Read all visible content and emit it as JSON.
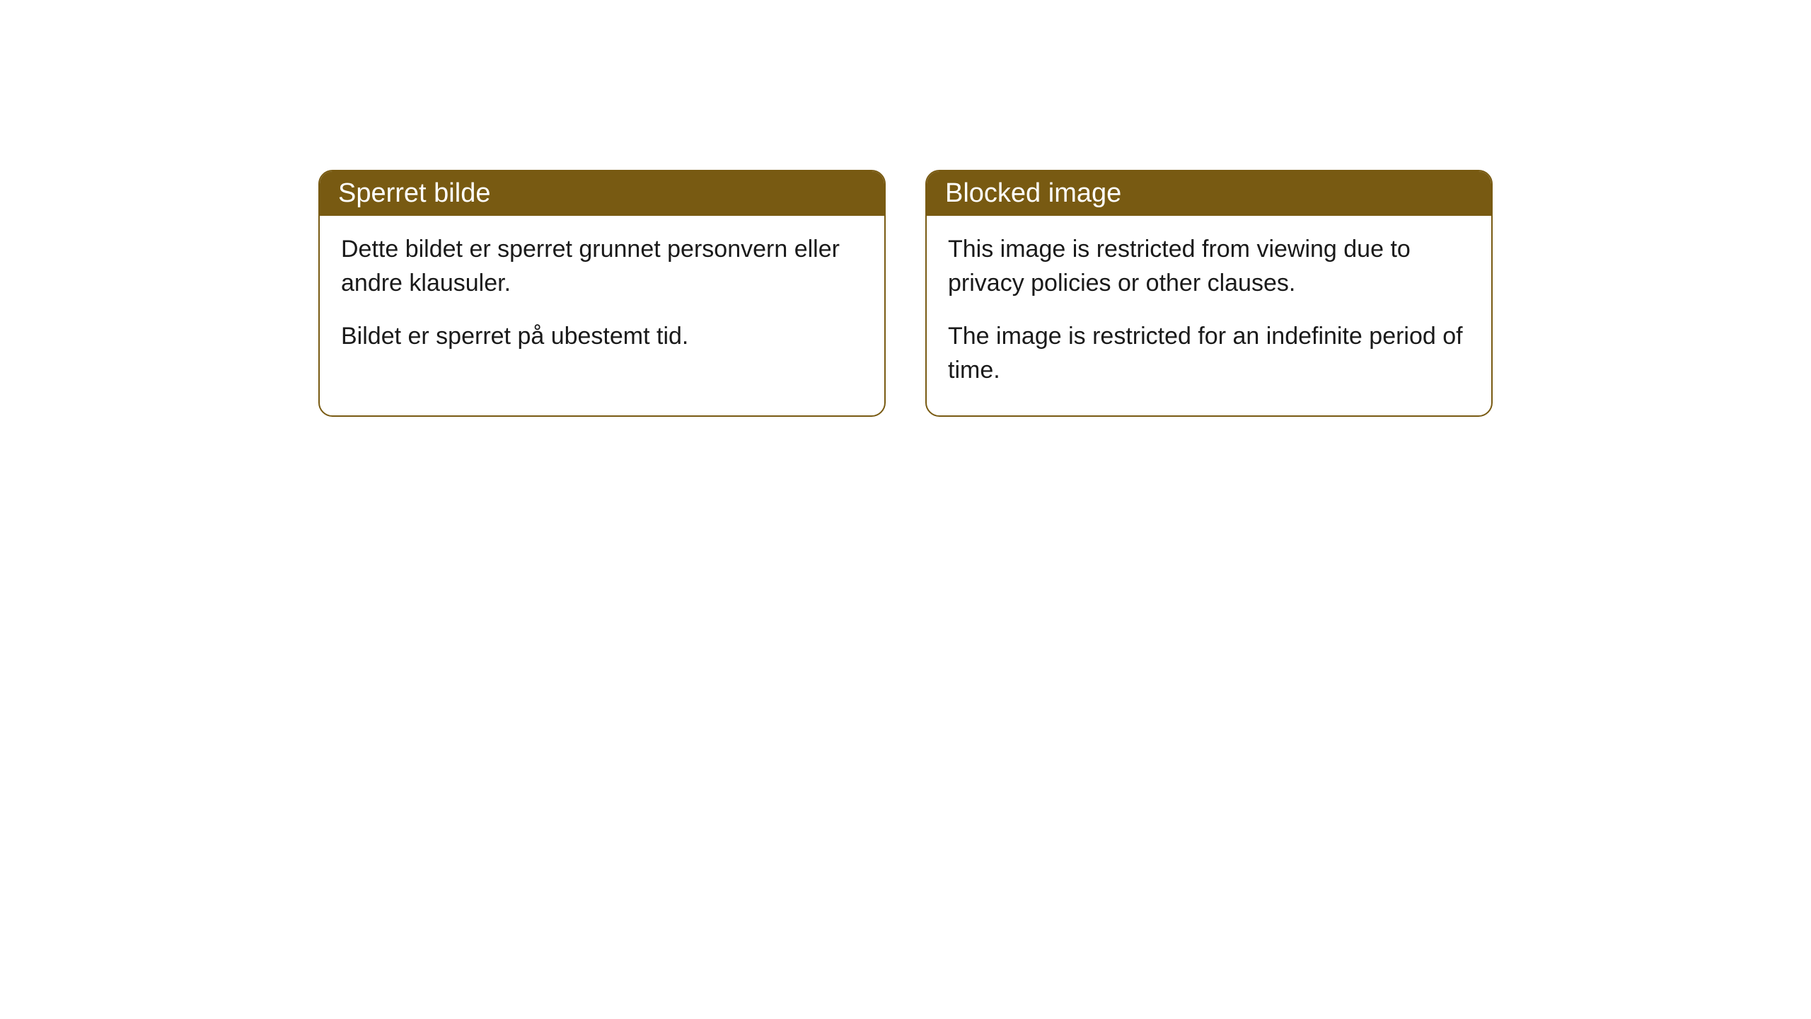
{
  "cards": [
    {
      "title": "Sperret bilde",
      "paragraph1": "Dette bildet er sperret grunnet personvern eller andre klausuler.",
      "paragraph2": "Bildet er sperret på ubestemt tid."
    },
    {
      "title": "Blocked image",
      "paragraph1": "This image is restricted from viewing due to privacy policies or other clauses.",
      "paragraph2": "The image is restricted for an indefinite period of time."
    }
  ],
  "styling": {
    "header_bg_color": "#785a12",
    "header_text_color": "#ffffff",
    "border_color": "#785a12",
    "body_text_color": "#1a1a1a",
    "background_color": "#ffffff",
    "border_radius": 20,
    "header_fontsize": 38,
    "body_fontsize": 34
  }
}
